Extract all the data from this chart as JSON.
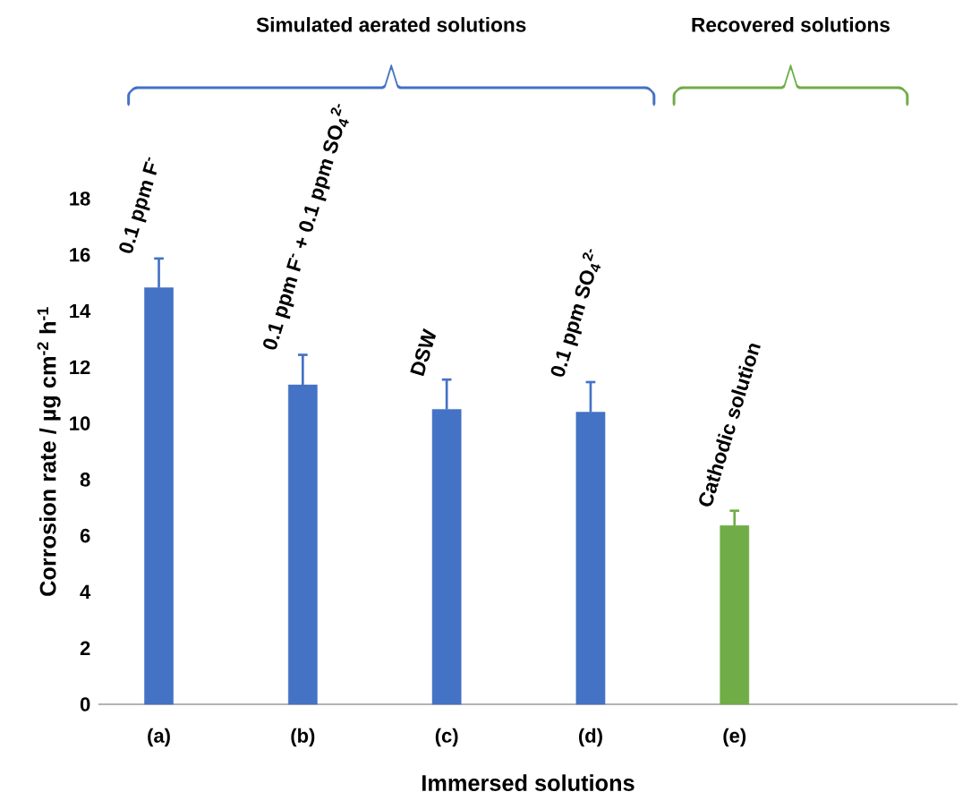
{
  "chart_data": {
    "type": "bar",
    "xlabel": "Immersed solutions",
    "ylabel": "Corrosion rate / µg cm$^{-2}$ h$^{-1}$",
    "categories": [
      "(a)",
      "(b)",
      "(c)",
      "(d)",
      "(e)"
    ],
    "values": [
      14.83,
      11.37,
      10.5,
      10.4,
      6.36
    ],
    "colors": [
      "#4472c4",
      "#4472c4",
      "#4472c4",
      "#4472c4",
      "#70ad47"
    ],
    "errors": [
      [
        14.83,
        15.87
      ],
      [
        11.37,
        12.44
      ],
      [
        10.5,
        11.56
      ],
      [
        10.4,
        11.47
      ],
      [
        6.36,
        6.89
      ]
    ],
    "ylim": [
      0,
      18
    ],
    "yticks": [
      0,
      2,
      4,
      6,
      8,
      10,
      12,
      14,
      16,
      18
    ],
    "annotations": [
      "Simulated aerated solutions",
      "Recovered solutions",
      "0.1 ppm F$^{-}$",
      "0.1 ppm F$^{-}$ + 0.1 ppm SO$_{4}$$^{2-}$",
      "DSW",
      "0.1 ppm SO$_{4}$$^{2-}$",
      "Cathodic solution"
    ]
  }
}
